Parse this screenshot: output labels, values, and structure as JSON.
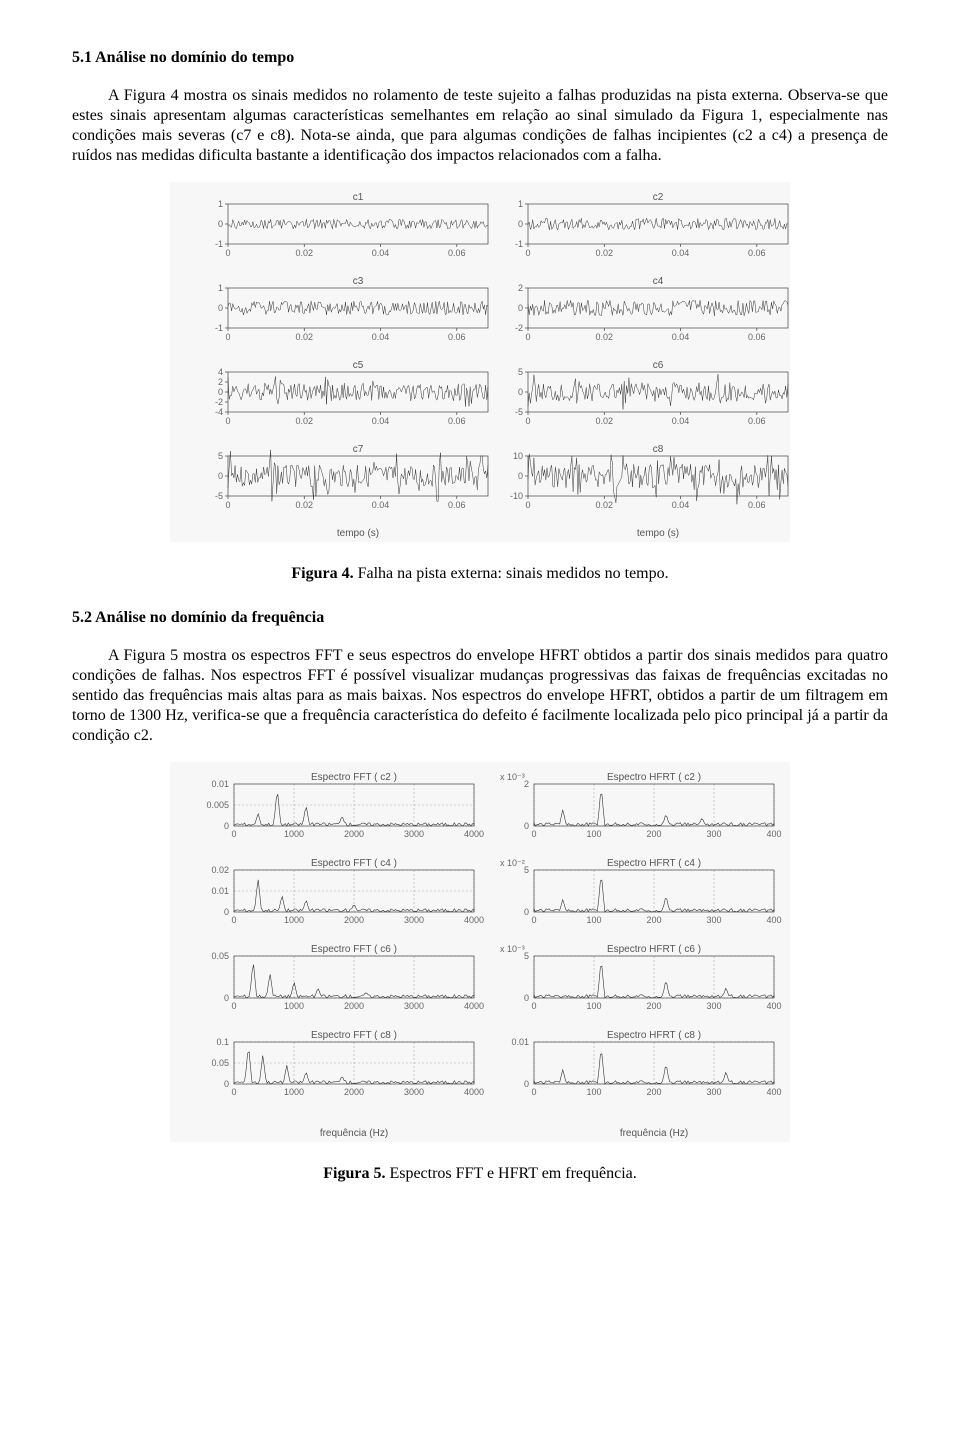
{
  "section1": {
    "heading": "5.1 Análise no domínio do tempo",
    "paragraph": "A Figura 4 mostra os sinais medidos no rolamento de teste sujeito a falhas produzidas na pista externa. Observa-se que estes sinais apresentam algumas características semelhantes em relação ao sinal simulado da Figura 1, especialmente nas condições mais severas (c7 e c8). Nota-se ainda, que para algumas condições de falhas incipientes (c2 a c4) a presença de ruídos nas medidas dificulta bastante a identificação dos impactos relacionados com a falha."
  },
  "figure4": {
    "caption_bold": "Figura 4.",
    "caption_rest": " Falha na pista externa: sinais medidos no tempo.",
    "label_x": "tempo (s)",
    "xticks": [
      "0",
      "0.02",
      "0.04",
      "0.06"
    ],
    "panels": [
      {
        "title": "c1",
        "ylim": [
          -1,
          1
        ],
        "yticks": [
          "1",
          "0",
          "-1"
        ]
      },
      {
        "title": "c2",
        "ylim": [
          -1,
          1
        ],
        "yticks": [
          "1",
          "0",
          "-1"
        ]
      },
      {
        "title": "c3",
        "ylim": [
          -1,
          1
        ],
        "yticks": [
          "1",
          "0",
          "-1"
        ]
      },
      {
        "title": "c4",
        "ylim": [
          -2,
          2
        ],
        "yticks": [
          "2",
          "0",
          "-2"
        ]
      },
      {
        "title": "c5",
        "ylim": [
          -4,
          4
        ],
        "yticks": [
          "4",
          "2",
          "0",
          "-2",
          "-4"
        ]
      },
      {
        "title": "c6",
        "ylim": [
          -5,
          5
        ],
        "yticks": [
          "5",
          "0",
          "-5"
        ]
      },
      {
        "title": "c7",
        "ylim": [
          -5,
          5
        ],
        "yticks": [
          "5",
          "0",
          "-5"
        ]
      },
      {
        "title": "c8",
        "ylim": [
          -10,
          10
        ],
        "yticks": [
          "10",
          "0",
          "-10"
        ]
      }
    ],
    "bg": "#f7f7f7",
    "line_color": "#333333"
  },
  "section2": {
    "heading": "5.2 Análise no domínio da frequência",
    "paragraph": "A Figura 5 mostra os espectros FFT e seus espectros do envelope HFRT obtidos a partir dos sinais medidos para quatro condições de falhas. Nos espectros FFT é possível visualizar mudanças progressivas das faixas de frequências excitadas no sentido das frequências mais altas para as mais baixas. Nos espectros do envelope HFRT, obtidos a partir de um filtragem em torno de 1300 Hz, verifica-se que a frequência característica do defeito é facilmente localizada pelo pico principal já a partir da condição c2."
  },
  "figure5": {
    "caption_bold": "Figura 5.",
    "caption_rest": " Espectros FFT e HFRT em frequência.",
    "label_x": "frequência (Hz)",
    "fft_xticks": [
      "0",
      "1000",
      "2000",
      "3000",
      "4000"
    ],
    "hfrt_xticks": [
      "0",
      "100",
      "200",
      "300",
      "400"
    ],
    "bg": "#f7f7f7",
    "left": [
      {
        "title": "Espectro FFT ( c2 )",
        "yticks": [
          "0.01",
          "0.005",
          "0"
        ],
        "peaks": [
          [
            0.18,
            0.9
          ],
          [
            0.3,
            0.5
          ],
          [
            0.1,
            0.3
          ],
          [
            0.45,
            0.25
          ]
        ]
      },
      {
        "title": "Espectro FFT ( c4 )",
        "yticks": [
          "0.02",
          "0.01",
          "0"
        ],
        "peaks": [
          [
            0.1,
            0.8
          ],
          [
            0.2,
            0.4
          ],
          [
            0.3,
            0.3
          ],
          [
            0.5,
            0.2
          ]
        ]
      },
      {
        "title": "Espectro FFT ( c6 )",
        "yticks": [
          "0.05",
          "0"
        ],
        "peaks": [
          [
            0.08,
            0.9
          ],
          [
            0.15,
            0.6
          ],
          [
            0.25,
            0.4
          ],
          [
            0.35,
            0.25
          ],
          [
            0.55,
            0.15
          ]
        ]
      },
      {
        "title": "Espectro FFT ( c8 )",
        "yticks": [
          "0.1",
          "0.05",
          "0"
        ],
        "peaks": [
          [
            0.06,
            0.95
          ],
          [
            0.12,
            0.7
          ],
          [
            0.22,
            0.45
          ],
          [
            0.3,
            0.3
          ],
          [
            0.45,
            0.2
          ]
        ]
      }
    ],
    "right": [
      {
        "title": "Espectro HFRT ( c2 )",
        "exp": "x 10⁻³",
        "yticks": [
          "2",
          "0"
        ],
        "peaks": [
          [
            0.28,
            0.95
          ],
          [
            0.12,
            0.4
          ],
          [
            0.55,
            0.3
          ],
          [
            0.7,
            0.2
          ]
        ]
      },
      {
        "title": "Espectro HFRT ( c4 )",
        "exp": "x 10⁻²",
        "yticks": [
          "5",
          "0"
        ],
        "peaks": [
          [
            0.28,
            0.95
          ],
          [
            0.55,
            0.4
          ],
          [
            0.12,
            0.3
          ]
        ]
      },
      {
        "title": "Espectro HFRT ( c6 )",
        "exp": "x 10⁻³",
        "yticks": [
          "5",
          "0"
        ],
        "peaks": [
          [
            0.28,
            0.95
          ],
          [
            0.55,
            0.45
          ],
          [
            0.8,
            0.25
          ]
        ]
      },
      {
        "title": "Espectro HFRT ( c8 )",
        "exp": "",
        "yticks": [
          "0.01",
          "0"
        ],
        "peaks": [
          [
            0.28,
            0.9
          ],
          [
            0.55,
            0.5
          ],
          [
            0.8,
            0.3
          ],
          [
            0.12,
            0.35
          ]
        ]
      }
    ]
  }
}
